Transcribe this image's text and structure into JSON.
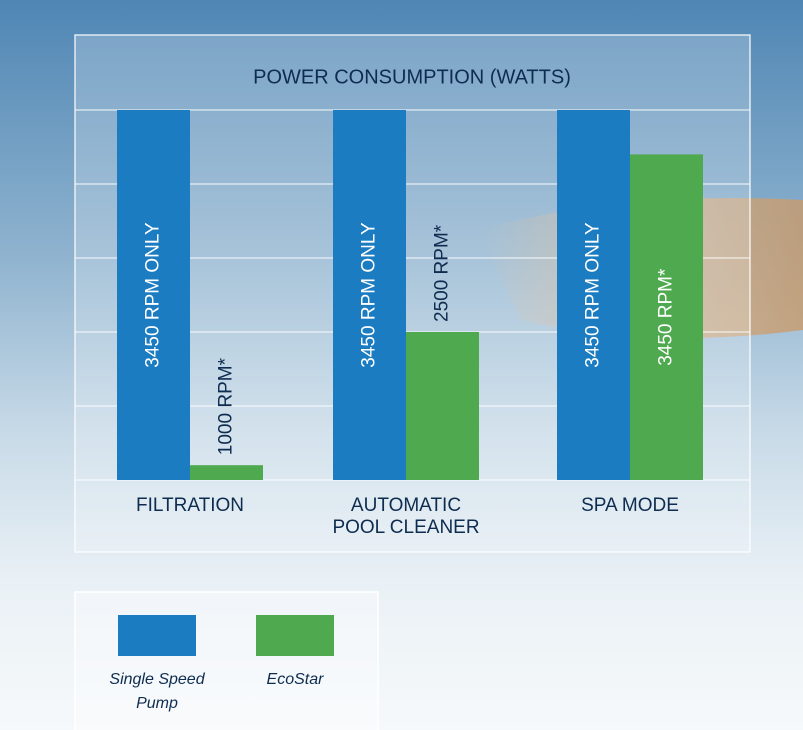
{
  "chart_data": {
    "type": "bar",
    "title": "POWER CONSUMPTION (WATTS)",
    "categories": [
      "FILTRATION",
      "AUTOMATIC POOL CLEANER",
      "SPA MODE"
    ],
    "series": [
      {
        "name": "Single Speed Pump",
        "color": "#1b7cc1",
        "values": [
          5,
          5,
          5
        ],
        "bar_labels": [
          "3450 RPM ONLY",
          "3450 RPM ONLY",
          "3450 RPM ONLY"
        ]
      },
      {
        "name": "EcoStar",
        "color": "#4ea94f",
        "values": [
          0.2,
          2,
          4.4
        ],
        "bar_labels": [
          "1000 RPM*",
          "2500 RPM*",
          "3450 RPM*"
        ]
      }
    ],
    "ylim": [
      0,
      5
    ],
    "yticks": [
      0,
      1,
      2,
      3,
      4,
      5
    ],
    "grid": true
  }
}
